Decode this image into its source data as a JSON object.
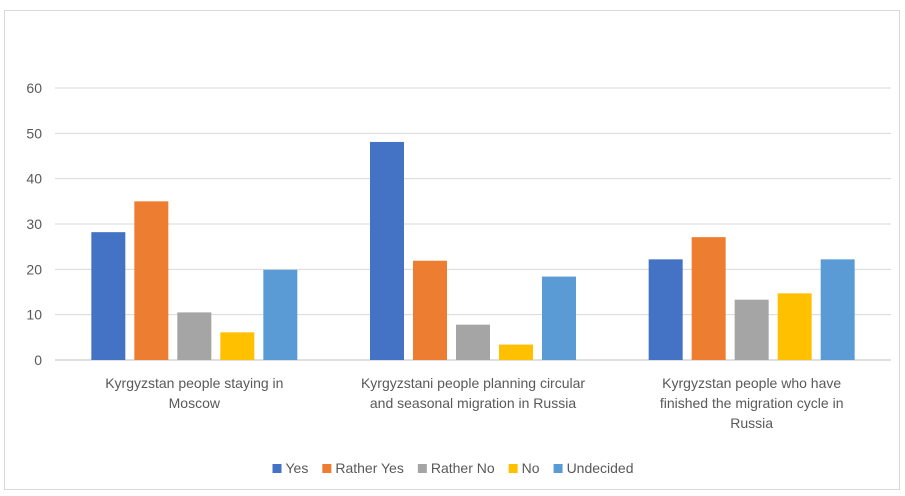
{
  "chart_data": {
    "type": "bar",
    "title": "",
    "xlabel": "",
    "ylabel": "",
    "ylim": [
      0,
      60
    ],
    "y_ticks": [
      0,
      10,
      20,
      30,
      40,
      50,
      60
    ],
    "grid": true,
    "legend_position": "bottom",
    "categories": [
      "Kyrgyzstan people staying in Moscow",
      "Kyrgyzstani people planning circular and seasonal migration in Russia",
      "Kyrgyzstan people who have finished the migration cycle in Russia"
    ],
    "category_label_lines": [
      [
        "Kyrgyzstan people staying in",
        "Moscow"
      ],
      [
        "Kyrgyzstani people planning circular",
        "and seasonal migration in Russia"
      ],
      [
        "Kyrgyzstan people who have",
        "finished the migration cycle in",
        "Russia"
      ]
    ],
    "series": [
      {
        "name": "Yes",
        "color": "#4472C4",
        "values": [
          28.2,
          48.1,
          22.2
        ]
      },
      {
        "name": "Rather Yes",
        "color": "#ED7D31",
        "values": [
          35.0,
          21.9,
          27.1
        ]
      },
      {
        "name": "Rather No",
        "color": "#A5A5A5",
        "values": [
          10.5,
          7.8,
          13.3
        ]
      },
      {
        "name": "No",
        "color": "#FFC000",
        "values": [
          6.1,
          3.4,
          14.7
        ]
      },
      {
        "name": "Undecided",
        "color": "#5B9BD5",
        "values": [
          19.9,
          18.4,
          22.2
        ]
      }
    ],
    "colors": {
      "grid": "#d9d9d9",
      "axis": "#bfbfbf",
      "text": "#595959"
    }
  }
}
